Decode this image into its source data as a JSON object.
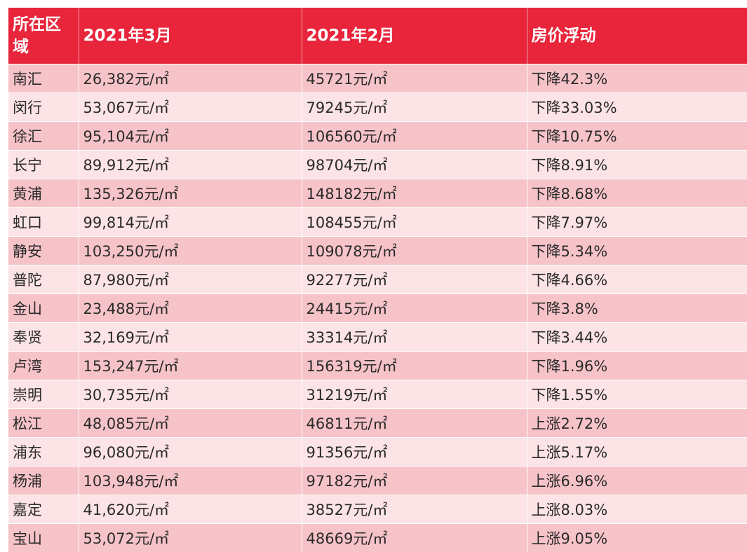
{
  "table": {
    "headers": [
      "所在区域",
      "2021年3月",
      "2021年2月",
      "房价浮动"
    ],
    "rows": [
      [
        "南汇",
        "26,382元/㎡",
        "45721元/㎡",
        "下降42.3%"
      ],
      [
        "闵行",
        "53,067元/㎡",
        "79245元/㎡",
        "下降33.03%"
      ],
      [
        "徐汇",
        "95,104元/㎡",
        "106560元/㎡",
        "下降10.75%"
      ],
      [
        "长宁",
        "89,912元/㎡",
        "98704元/㎡",
        "下降8.91%"
      ],
      [
        "黄浦",
        "135,326元/㎡",
        "148182元/㎡",
        "下降8.68%"
      ],
      [
        "虹口",
        "99,814元/㎡",
        "108455元/㎡",
        "下降7.97%"
      ],
      [
        "静安",
        "103,250元/㎡",
        "109078元/㎡",
        "下降5.34%"
      ],
      [
        "普陀",
        "87,980元/㎡",
        "92277元/㎡",
        "下降4.66%"
      ],
      [
        "金山",
        "23,488元/㎡",
        "24415元/㎡",
        "下降3.8%"
      ],
      [
        "奉贤",
        "32,169元/㎡",
        "33314元/㎡",
        "下降3.44%"
      ],
      [
        "卢湾",
        "153,247元/㎡",
        "156319元/㎡",
        "下降1.96%"
      ],
      [
        "崇明",
        "30,735元/㎡",
        "31219元/㎡",
        "下降1.55%"
      ],
      [
        "松江",
        "48,085元/㎡",
        "46811元/㎡",
        "上涨2.72%"
      ],
      [
        "浦东",
        "96,080元/㎡",
        "91356元/㎡",
        "上涨5.17%"
      ],
      [
        "杨浦",
        "103,948元/㎡",
        "97182元/㎡",
        "上涨6.96%"
      ],
      [
        "嘉定",
        "41,620元/㎡",
        "38527元/㎡",
        "上涨8.03%"
      ],
      [
        "宝山",
        "53,072元/㎡",
        "48669元/㎡",
        "上涨9.05%"
      ]
    ]
  },
  "colors": {
    "header_bg": "#e8253b",
    "header_text": "#ffffff",
    "row_dark": "#f6c3c9",
    "row_light": "#fbe3e6",
    "cell_text": "#2a2a2a"
  }
}
